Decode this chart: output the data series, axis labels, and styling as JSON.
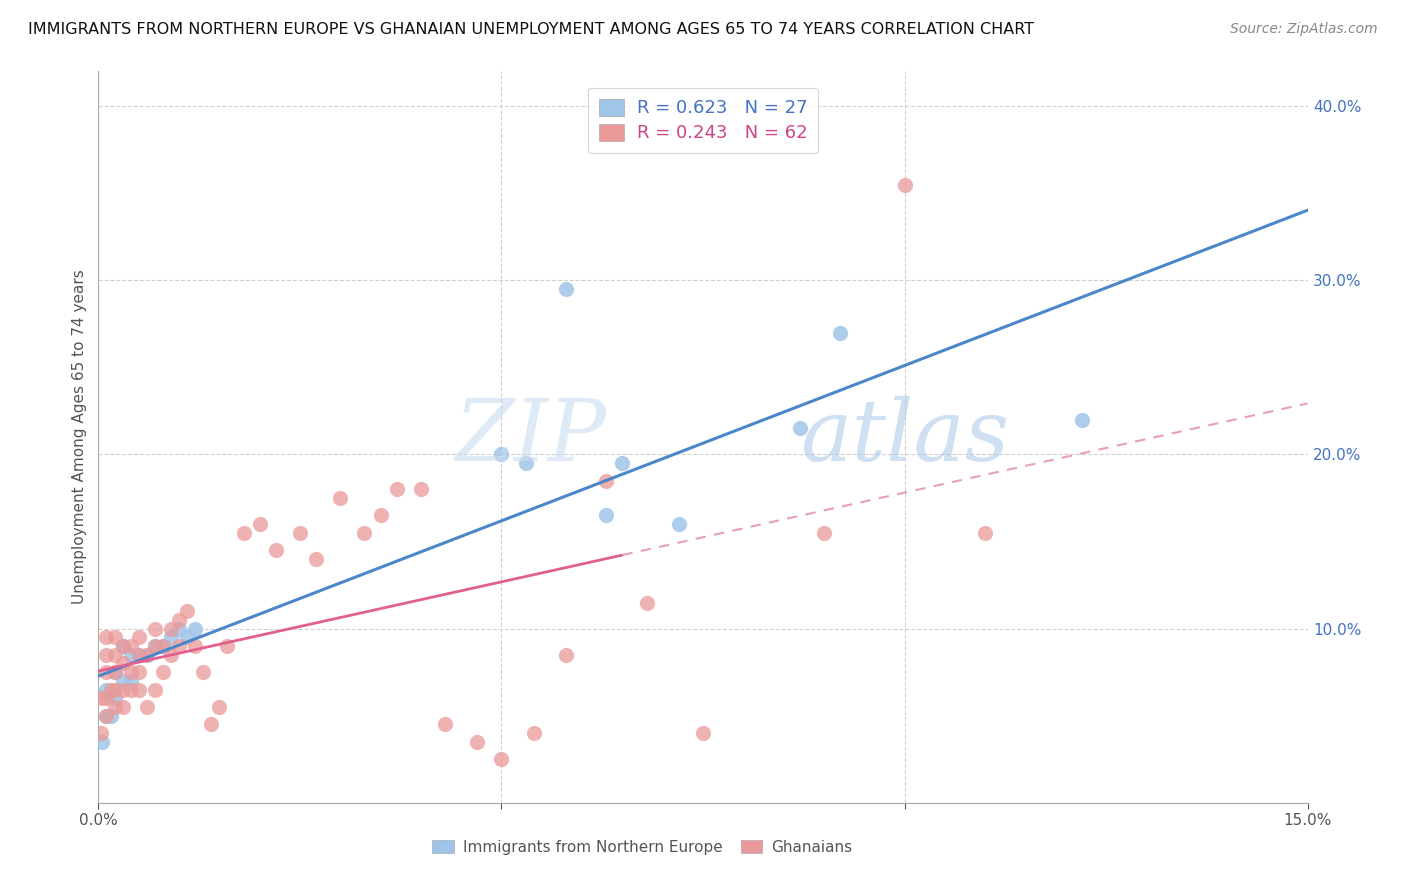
{
  "title": "IMMIGRANTS FROM NORTHERN EUROPE VS GHANAIAN UNEMPLOYMENT AMONG AGES 65 TO 74 YEARS CORRELATION CHART",
  "source": "Source: ZipAtlas.com",
  "ylabel": "Unemployment Among Ages 65 to 74 years",
  "xlim": [
    0.0,
    0.15
  ],
  "ylim": [
    0.0,
    0.42
  ],
  "xtick_positions": [
    0.0,
    0.05,
    0.1,
    0.15
  ],
  "xtick_labels": [
    "0.0%",
    "",
    "",
    "15.0%"
  ],
  "ytick_positions": [
    0.0,
    0.1,
    0.2,
    0.3,
    0.4
  ],
  "ytick_labels": [
    "",
    "10.0%",
    "20.0%",
    "30.0%",
    "40.0%"
  ],
  "blue_color": "#9fc5e8",
  "pink_color": "#ea9999",
  "blue_line_color": "#4a86c8",
  "pink_solid_color": "#e06090",
  "pink_dash_color": "#e8a0b8",
  "R_blue": 0.623,
  "N_blue": 27,
  "R_pink": 0.243,
  "N_pink": 62,
  "blue_scatter_x": [
    0.0005,
    0.001,
    0.001,
    0.0015,
    0.002,
    0.002,
    0.003,
    0.003,
    0.004,
    0.004,
    0.005,
    0.006,
    0.007,
    0.008,
    0.009,
    0.01,
    0.011,
    0.012,
    0.05,
    0.053,
    0.058,
    0.063,
    0.065,
    0.072,
    0.087,
    0.092,
    0.122
  ],
  "blue_scatter_y": [
    0.035,
    0.05,
    0.065,
    0.05,
    0.06,
    0.075,
    0.07,
    0.09,
    0.07,
    0.085,
    0.085,
    0.085,
    0.09,
    0.09,
    0.095,
    0.1,
    0.095,
    0.1,
    0.2,
    0.195,
    0.295,
    0.165,
    0.195,
    0.16,
    0.215,
    0.27,
    0.22
  ],
  "pink_scatter_x": [
    0.0003,
    0.0005,
    0.001,
    0.001,
    0.001,
    0.001,
    0.001,
    0.0015,
    0.002,
    0.002,
    0.002,
    0.002,
    0.002,
    0.003,
    0.003,
    0.003,
    0.003,
    0.004,
    0.004,
    0.004,
    0.005,
    0.005,
    0.005,
    0.005,
    0.006,
    0.006,
    0.007,
    0.007,
    0.007,
    0.008,
    0.008,
    0.009,
    0.009,
    0.01,
    0.01,
    0.011,
    0.012,
    0.013,
    0.014,
    0.015,
    0.016,
    0.018,
    0.02,
    0.022,
    0.025,
    0.027,
    0.03,
    0.033,
    0.035,
    0.037,
    0.04,
    0.043,
    0.047,
    0.05,
    0.054,
    0.058,
    0.063,
    0.068,
    0.075,
    0.09,
    0.1,
    0.11
  ],
  "pink_scatter_y": [
    0.04,
    0.06,
    0.05,
    0.06,
    0.075,
    0.085,
    0.095,
    0.065,
    0.055,
    0.065,
    0.075,
    0.085,
    0.095,
    0.055,
    0.065,
    0.08,
    0.09,
    0.065,
    0.075,
    0.09,
    0.065,
    0.075,
    0.085,
    0.095,
    0.055,
    0.085,
    0.065,
    0.09,
    0.1,
    0.075,
    0.09,
    0.085,
    0.1,
    0.09,
    0.105,
    0.11,
    0.09,
    0.075,
    0.045,
    0.055,
    0.09,
    0.155,
    0.16,
    0.145,
    0.155,
    0.14,
    0.175,
    0.155,
    0.165,
    0.18,
    0.18,
    0.045,
    0.035,
    0.025,
    0.04,
    0.085,
    0.185,
    0.115,
    0.04,
    0.155,
    0.355,
    0.155
  ],
  "pink_line_solid_end": 0.065,
  "watermark_color": "#d8e8f5",
  "background_color": "#ffffff",
  "grid_color": "#cccccc"
}
